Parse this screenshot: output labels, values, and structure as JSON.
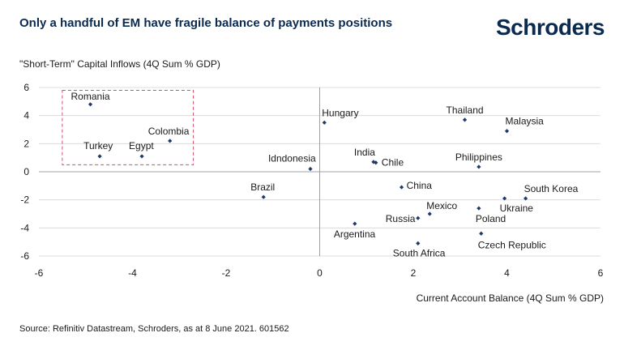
{
  "header": {
    "title": "Only a handful of EM have fragile balance of payments positions",
    "logo_text": "Schroders"
  },
  "footer": {
    "source": "Source: Refinitiv Datastream, Schroders, as at 8 June 2021. 601562"
  },
  "colors": {
    "navy": "#0b2a4f",
    "marker": "#1f3a68",
    "gridline": "#dcdcdc",
    "zero_axis": "#a0a0a0",
    "highlight_box": "#d0506e"
  },
  "chart_data": {
    "type": "scatter",
    "ylabel": "\"Short-Term\" Capital Inflows (4Q Sum % GDP)",
    "xlabel": "Current Account Balance (4Q Sum % GDP)",
    "xlim": [
      -6,
      6
    ],
    "ylim": [
      -6,
      6
    ],
    "xticks": [
      -6,
      -4,
      -2,
      0,
      2,
      4,
      6
    ],
    "yticks": [
      6,
      4,
      2,
      0,
      -2,
      -4,
      -6
    ],
    "grid": "horizontal",
    "highlight_box": {
      "x": [
        -5.5,
        -2.7
      ],
      "y": [
        0.5,
        5.8
      ]
    },
    "points": [
      {
        "label": "Romania",
        "x": -4.9,
        "y": 4.8,
        "anchor": "start",
        "dx": -24,
        "dy": -6
      },
      {
        "label": "Turkey",
        "x": -4.7,
        "y": 1.1,
        "anchor": "start",
        "dx": -20,
        "dy": -9
      },
      {
        "label": "Egypt",
        "x": -3.8,
        "y": 1.1,
        "anchor": "start",
        "dx": -16,
        "dy": -9
      },
      {
        "label": "Colombia",
        "x": -3.2,
        "y": 2.2,
        "anchor": "start",
        "dx": -27,
        "dy": -8
      },
      {
        "label": "Brazil",
        "x": -1.2,
        "y": -1.8,
        "anchor": "start",
        "dx": -16,
        "dy": -8
      },
      {
        "label": "Idndonesia",
        "x": -0.2,
        "y": 0.2,
        "anchor": "start",
        "dx": -52,
        "dy": -9
      },
      {
        "label": "Hungary",
        "x": 0.1,
        "y": 3.5,
        "anchor": "start",
        "dx": -3,
        "dy": -8
      },
      {
        "label": "India",
        "x": 1.15,
        "y": 0.7,
        "anchor": "start",
        "dx": -24,
        "dy": -8
      },
      {
        "label": "Chile",
        "x": 1.2,
        "y": 0.65,
        "anchor": "start",
        "dx": 7,
        "dy": 4
      },
      {
        "label": "China",
        "x": 1.75,
        "y": -1.1,
        "anchor": "start",
        "dx": 6,
        "dy": 2
      },
      {
        "label": "Argentina",
        "x": 0.75,
        "y": -3.7,
        "anchor": "start",
        "dx": -26,
        "dy": 17
      },
      {
        "label": "Russia",
        "x": 2.1,
        "y": -3.3,
        "anchor": "start",
        "dx": -40,
        "dy": 5
      },
      {
        "label": "Mexico",
        "x": 2.35,
        "y": -3.0,
        "anchor": "start",
        "dx": -4,
        "dy": -6
      },
      {
        "label": "South Africa",
        "x": 2.1,
        "y": -5.1,
        "anchor": "start",
        "dx": -31,
        "dy": 16
      },
      {
        "label": "Thailand",
        "x": 3.1,
        "y": 3.7,
        "anchor": "start",
        "dx": -23,
        "dy": -8
      },
      {
        "label": "Malaysia",
        "x": 4.0,
        "y": 2.9,
        "anchor": "start",
        "dx": -2,
        "dy": -8
      },
      {
        "label": "Philippines",
        "x": 3.4,
        "y": 0.35,
        "anchor": "start",
        "dx": -29,
        "dy": -8
      },
      {
        "label": "South Korea",
        "x": 4.4,
        "y": -1.9,
        "anchor": "start",
        "dx": -2,
        "dy": -8
      },
      {
        "label": "Ukraine",
        "x": 3.95,
        "y": -1.9,
        "anchor": "start",
        "dx": -6,
        "dy": 16
      },
      {
        "label": "Poland",
        "x": 3.4,
        "y": -2.6,
        "anchor": "start",
        "dx": -4,
        "dy": 17
      },
      {
        "label": "Czech Republic",
        "x": 3.45,
        "y": -4.4,
        "anchor": "start",
        "dx": -4,
        "dy": 18
      }
    ]
  }
}
